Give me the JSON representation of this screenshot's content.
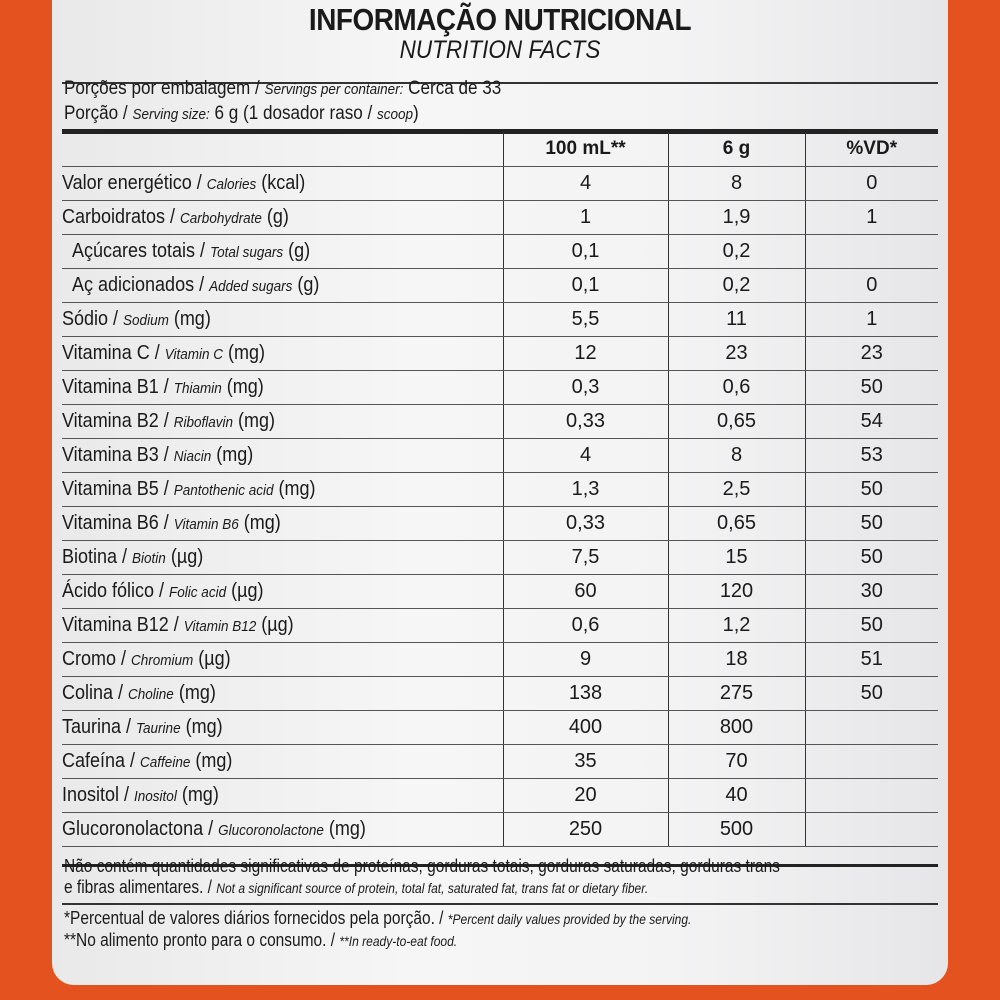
{
  "header": {
    "title": "INFORMAÇÃO NUTRICIONAL",
    "subtitle": "NUTRITION FACTS"
  },
  "servings": {
    "pt": "Porções por embalagem / ",
    "en": "Servings per container:",
    "value": " Cerca de 33"
  },
  "serving_size": {
    "pt": "Porção / ",
    "en": "Serving size:",
    "value": " 6 g (1 dosador raso / ",
    "en2": "scoop",
    "close": ")"
  },
  "columns": [
    "",
    "100 mL**",
    "6 g",
    "%VD*"
  ],
  "rows": [
    {
      "pt": "Valor energético / ",
      "en": "Calories",
      "unit": " (kcal)",
      "indent": false,
      "v100": "4",
      "v6": "8",
      "vd": "0"
    },
    {
      "pt": "Carboidratos / ",
      "en": "Carbohydrate",
      "unit": " (g)",
      "indent": false,
      "v100": "1",
      "v6": "1,9",
      "vd": "1"
    },
    {
      "pt": "Açúcares totais / ",
      "en": "Total sugars",
      "unit": " (g)",
      "indent": true,
      "v100": "0,1",
      "v6": "0,2",
      "vd": ""
    },
    {
      "pt": "Aç adicionados / ",
      "en": "Added sugars",
      "unit": " (g)",
      "indent": true,
      "v100": "0,1",
      "v6": "0,2",
      "vd": "0"
    },
    {
      "pt": "Sódio / ",
      "en": "Sodium",
      "unit": " (mg)",
      "indent": false,
      "v100": "5,5",
      "v6": "11",
      "vd": "1"
    },
    {
      "pt": "Vitamina C / ",
      "en": "Vitamin C",
      "unit": " (mg)",
      "indent": false,
      "v100": "12",
      "v6": "23",
      "vd": "23"
    },
    {
      "pt": "Vitamina B1 / ",
      "en": "Thiamin",
      "unit": " (mg)",
      "indent": false,
      "v100": "0,3",
      "v6": "0,6",
      "vd": "50"
    },
    {
      "pt": "Vitamina B2 / ",
      "en": "Riboflavin",
      "unit": " (mg)",
      "indent": false,
      "v100": "0,33",
      "v6": "0,65",
      "vd": "54"
    },
    {
      "pt": "Vitamina B3 / ",
      "en": "Niacin",
      "unit": " (mg)",
      "indent": false,
      "v100": "4",
      "v6": "8",
      "vd": "53"
    },
    {
      "pt": "Vitamina B5 / ",
      "en": "Pantothenic acid",
      "unit": " (mg)",
      "indent": false,
      "v100": "1,3",
      "v6": "2,5",
      "vd": "50"
    },
    {
      "pt": "Vitamina B6 / ",
      "en": "Vitamin B6",
      "unit": " (mg)",
      "indent": false,
      "v100": "0,33",
      "v6": "0,65",
      "vd": "50"
    },
    {
      "pt": "Biotina / ",
      "en": "Biotin",
      "unit": " (µg)",
      "indent": false,
      "v100": "7,5",
      "v6": "15",
      "vd": "50"
    },
    {
      "pt": "Ácido fólico / ",
      "en": "Folic acid",
      "unit": " (µg)",
      "indent": false,
      "v100": "60",
      "v6": "120",
      "vd": "30"
    },
    {
      "pt": "Vitamina B12 / ",
      "en": "Vitamin B12",
      "unit": " (µg)",
      "indent": false,
      "v100": "0,6",
      "v6": "1,2",
      "vd": "50"
    },
    {
      "pt": "Cromo / ",
      "en": "Chromium",
      "unit": " (µg)",
      "indent": false,
      "v100": "9",
      "v6": "18",
      "vd": "51"
    },
    {
      "pt": "Colina / ",
      "en": "Choline",
      "unit": " (mg)",
      "indent": false,
      "v100": "138",
      "v6": "275",
      "vd": "50"
    },
    {
      "pt": "Taurina / ",
      "en": "Taurine",
      "unit": " (mg)",
      "indent": false,
      "v100": "400",
      "v6": "800",
      "vd": ""
    },
    {
      "pt": "Cafeína / ",
      "en": "Caffeine",
      "unit": " (mg)",
      "indent": false,
      "v100": "35",
      "v6": "70",
      "vd": ""
    },
    {
      "pt": "Inositol / ",
      "en": "Inositol",
      "unit": " (mg)",
      "indent": false,
      "v100": "20",
      "v6": "40",
      "vd": ""
    },
    {
      "pt": "Glucoronolactona / ",
      "en": "Glucoronolactone",
      "unit": " (mg)",
      "indent": false,
      "v100": "250",
      "v6": "500",
      "vd": ""
    }
  ],
  "footer": {
    "line1": "Não contém quantidades significativas de proteínas, gorduras totais, gorduras saturadas, gorduras trans",
    "line2_pt": "e fibras alimentares. / ",
    "line2_en": "Not a significant source of protein, total fat, saturated fat, trans fat or dietary fiber.",
    "line3_pt": "*Percentual de valores diários fornecidos pela porção. / ",
    "line3_en": "*Percent daily values provided by the serving.",
    "line4_pt": "**No alimento pronto para o consumo. / ",
    "line4_en": "**In ready-to-eat food."
  },
  "colors": {
    "background": "#e4521f",
    "label": "#f3f3f4",
    "text": "#1a1a1a"
  }
}
